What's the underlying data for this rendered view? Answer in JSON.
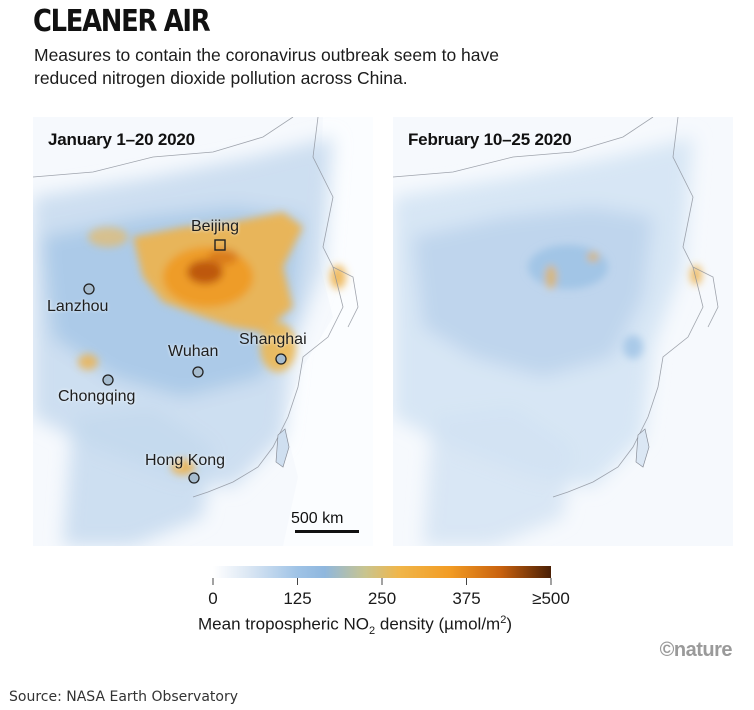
{
  "header": {
    "title": "CLEANER AIR",
    "subtitle": "Measures to contain the coronavirus outbreak seem to have reduced nitrogen dioxide pollution across China."
  },
  "maps": [
    {
      "period": "January 1–20 2020",
      "cities": [
        {
          "name": "Beijing",
          "marker": "square"
        },
        {
          "name": "Lanzhou",
          "marker": "circle"
        },
        {
          "name": "Shanghai",
          "marker": "circle"
        },
        {
          "name": "Wuhan",
          "marker": "circle"
        },
        {
          "name": "Chongqing",
          "marker": "circle"
        },
        {
          "name": "Hong Kong",
          "marker": "circle"
        }
      ],
      "scale_bar": "500 km"
    },
    {
      "period": "February 10–25 2020"
    }
  ],
  "legend": {
    "ticks": [
      "0",
      "125",
      "250",
      "375",
      "≥500"
    ],
    "caption_pre": "Mean tropospheric NO",
    "caption_sub": "2",
    "caption_mid": " density (µmol/m",
    "caption_sup": "2",
    "caption_post": ")",
    "colors": [
      "#ffffff",
      "#9fc3e6",
      "#f0b64a",
      "#c9620f",
      "#4a1f05"
    ]
  },
  "logo": "©nature",
  "source": "Source: NASA Earth Observatory"
}
